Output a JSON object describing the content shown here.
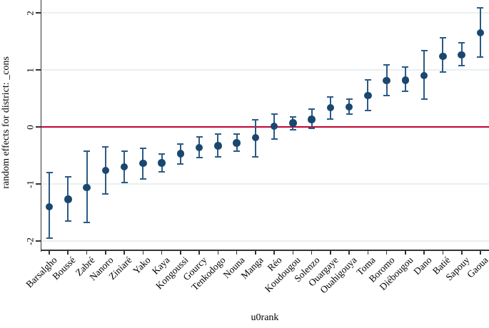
{
  "chart_data": {
    "type": "scatter",
    "subtype": "caterpillar-plot-with-95ci-error-bars",
    "title": "",
    "xlabel": "u0rank",
    "ylabel": "random effects for district: _cons",
    "ylim": [
      -2.2,
      2.25
    ],
    "yticks": [
      -2,
      -1,
      0,
      1,
      2
    ],
    "refline_y": 0,
    "grid": true,
    "legend": "none",
    "categories": [
      "Barsalgho",
      "Boussé",
      "Zabré",
      "Nanoro",
      "Ziniaré",
      "Yako",
      "Kaya",
      "Kongoussi",
      "Gourcy",
      "Tenkodogo",
      "Nouna",
      "Manga",
      "Réo",
      "Koudougou",
      "Solenzo",
      "Ouargaye",
      "Ouahigouya",
      "Toma",
      "Boromo",
      "Diébougou",
      "Dano",
      "Batié",
      "Sapouy",
      "Gaoua"
    ],
    "series": [
      {
        "name": "estimate",
        "values": [
          -1.4,
          -1.27,
          -1.06,
          -0.76,
          -0.7,
          -0.64,
          -0.63,
          -0.47,
          -0.36,
          -0.33,
          -0.28,
          -0.19,
          0.01,
          0.07,
          0.13,
          0.34,
          0.35,
          0.55,
          0.81,
          0.82,
          0.9,
          1.24,
          1.26,
          1.65
        ]
      },
      {
        "name": "ci_low",
        "values": [
          -1.95,
          -1.65,
          -1.68,
          -1.18,
          -0.97,
          -0.91,
          -0.79,
          -0.65,
          -0.54,
          -0.53,
          -0.42,
          -0.53,
          -0.21,
          -0.05,
          -0.02,
          0.14,
          0.22,
          0.29,
          0.55,
          0.62,
          0.49,
          0.96,
          1.07,
          1.22
        ]
      },
      {
        "name": "ci_high",
        "values": [
          -0.8,
          -0.88,
          -0.43,
          -0.35,
          -0.43,
          -0.37,
          -0.48,
          -0.3,
          -0.17,
          -0.12,
          -0.13,
          0.13,
          0.23,
          0.18,
          0.31,
          0.53,
          0.49,
          0.82,
          1.09,
          1.05,
          1.34,
          1.56,
          1.48,
          2.09
        ]
      }
    ]
  },
  "style": {
    "marker_color": "#1a476f",
    "ci_color": "#2b5a86",
    "refline_color": "#c10534",
    "grid_color": "#e9eff1",
    "axis_color": "#333333",
    "text_color": "#000000",
    "background": "#ffffff"
  }
}
